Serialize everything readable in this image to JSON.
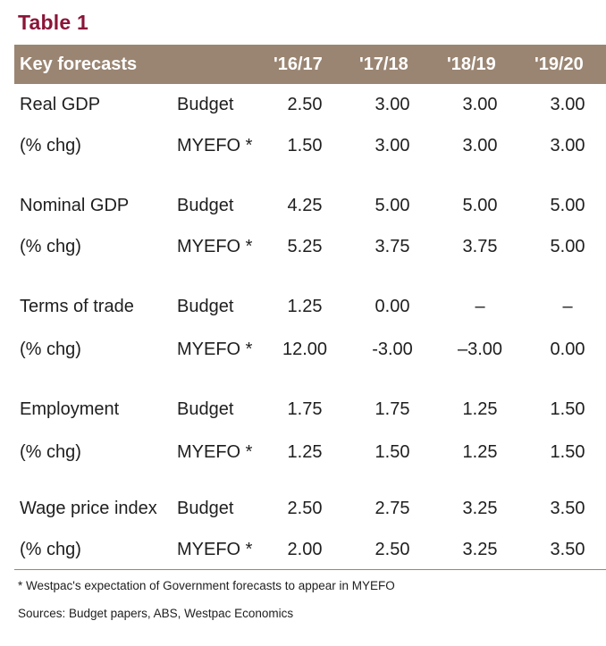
{
  "title": "Table 1",
  "header": {
    "label": "Key forecasts",
    "years": [
      "'16/17",
      "'17/18",
      "'18/19",
      "'19/20"
    ]
  },
  "groups": [
    {
      "name": "Real GDP",
      "unit": "(% chg)",
      "budget_label": "Budget",
      "myefo_label": "MYEFO *",
      "budget": [
        "2.50",
        "3.00",
        "3.00",
        "3.00"
      ],
      "myefo": [
        "1.50",
        "3.00",
        "3.00",
        "3.00"
      ]
    },
    {
      "name": "Nominal GDP",
      "unit": "(% chg)",
      "budget_label": "Budget",
      "myefo_label": "MYEFO *",
      "budget": [
        "4.25",
        "5.00",
        "5.00",
        "5.00"
      ],
      "myefo": [
        "5.25",
        "3.75",
        "3.75",
        "5.00"
      ]
    },
    {
      "name": "Terms of trade",
      "unit": "(% chg)",
      "budget_label": "Budget",
      "myefo_label": "MYEFO *",
      "budget": [
        "1.25",
        "0.00",
        "–",
        "–"
      ],
      "myefo": [
        "12.00",
        "-3.00",
        "–3.00",
        "0.00"
      ]
    },
    {
      "name": "Employment",
      "unit": "(% chg)",
      "budget_label": "Budget",
      "myefo_label": "MYEFO *",
      "budget": [
        "1.75",
        "1.75",
        "1.25",
        "1.50"
      ],
      "myefo": [
        "1.25",
        "1.50",
        "1.25",
        "1.50"
      ]
    },
    {
      "name": "Wage price index",
      "unit": "(% chg)",
      "budget_label": "Budget",
      "myefo_label": "MYEFO *",
      "budget": [
        "2.50",
        "2.75",
        "3.25",
        "3.50"
      ],
      "myefo": [
        "2.00",
        "2.50",
        "3.25",
        "3.50"
      ]
    }
  ],
  "footnote": "* Westpac's expectation of Government forecasts to appear in MYEFO",
  "sources": "Sources: Budget papers, ABS, Westpac Economics",
  "colors": {
    "title": "#8a1538",
    "header_bg": "#9a8572",
    "header_text": "#ffffff"
  }
}
